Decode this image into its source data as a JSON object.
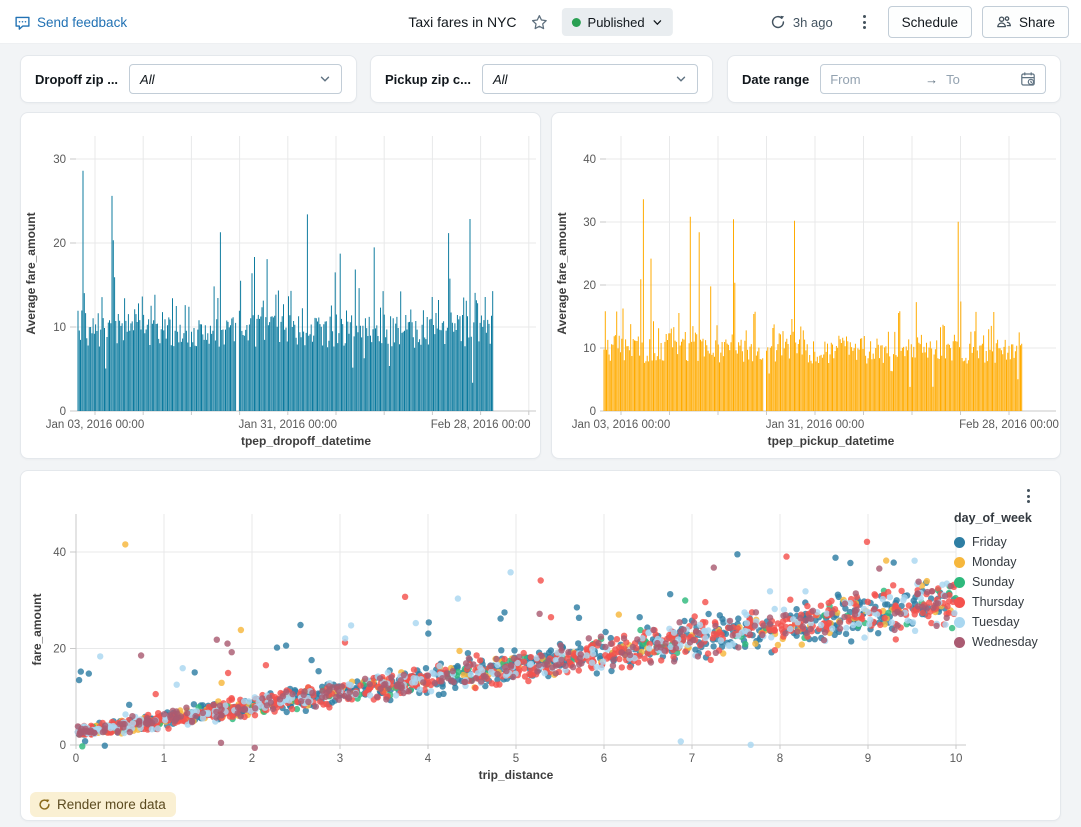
{
  "header": {
    "send_feedback_label": "Send feedback",
    "title": "Taxi fares in NYC",
    "status_label": "Published",
    "last_refresh": "3h ago",
    "schedule_button": "Schedule",
    "share_button": "Share"
  },
  "filters": {
    "dropoff": {
      "label": "Dropoff zip ...",
      "value": "All"
    },
    "pickup": {
      "label": "Pickup zip c...",
      "value": "All"
    },
    "date_range": {
      "label": "Date range",
      "from_placeholder": "From",
      "to_placeholder": "To"
    }
  },
  "footer": {
    "render_more_label": "Render more data"
  },
  "colors": {
    "accent_blue": "#2272b4",
    "published_green": "#2aa053",
    "teal_bars": "#0c7a9e",
    "orange_bars": "#ffab00",
    "render_more_bg": "#faf0d3"
  },
  "chart_data": [
    {
      "type": "bar",
      "xlabel": "tpep_dropoff_datetime",
      "ylabel": "Average fare_amount",
      "x_tick_labels": [
        "Jan 03, 2016 00:00",
        "Jan 31, 2016 00:00",
        "Feb 28, 2016 00:00"
      ],
      "x_gridlines": "weekly",
      "y_ticks": [
        0,
        10,
        20,
        30
      ],
      "ylim": [
        0,
        30
      ],
      "bar_color": "#0c7a9e",
      "typical_range": [
        7.5,
        13.5
      ],
      "max_value": 28.6,
      "n_bars": 330,
      "peak_frac": 0.012,
      "gap_frac": 0.382,
      "seed": 7
    },
    {
      "type": "bar",
      "xlabel": "tpep_pickup_datetime",
      "ylabel": "Average fare_amount",
      "x_tick_labels": [
        "Jan 03, 2016 00:00",
        "Jan 31, 2016 00:00",
        "Feb 28, 2016 00:00"
      ],
      "x_gridlines": "weekly",
      "y_ticks": [
        0,
        10,
        20,
        30,
        40
      ],
      "ylim": [
        0,
        40
      ],
      "bar_color": "#ffab00",
      "typical_range": [
        7.5,
        13.5
      ],
      "max_value": 33.6,
      "n_bars": 330,
      "peak_frac": 0.095,
      "gap_frac": 0.382,
      "seed": 13
    },
    {
      "type": "scatter",
      "xlabel": "trip_distance",
      "ylabel": "fare_amount",
      "x_ticks": [
        0,
        1,
        2,
        3,
        4,
        5,
        6,
        7,
        8,
        9,
        10
      ],
      "xlim": [
        0,
        10
      ],
      "y_ticks": [
        0,
        20,
        40
      ],
      "ylim": [
        -2,
        48
      ],
      "legend_title": "day_of_week",
      "series": [
        {
          "name": "Friday",
          "color": "#2e7ea3",
          "weight": 0.32
        },
        {
          "name": "Monday",
          "color": "#f6b73c",
          "weight": 0.08
        },
        {
          "name": "Sunday",
          "color": "#2eb97c",
          "weight": 0.05
        },
        {
          "name": "Thursday",
          "color": "#f4524d",
          "weight": 0.3
        },
        {
          "name": "Tuesday",
          "color": "#a9d7f0",
          "weight": 0.12
        },
        {
          "name": "Wednesday",
          "color": "#aa5b72",
          "weight": 0.13
        }
      ],
      "trend": {
        "intercept": 2.5,
        "slope": 2.75
      },
      "n_points": 2100,
      "seed": 42
    }
  ]
}
